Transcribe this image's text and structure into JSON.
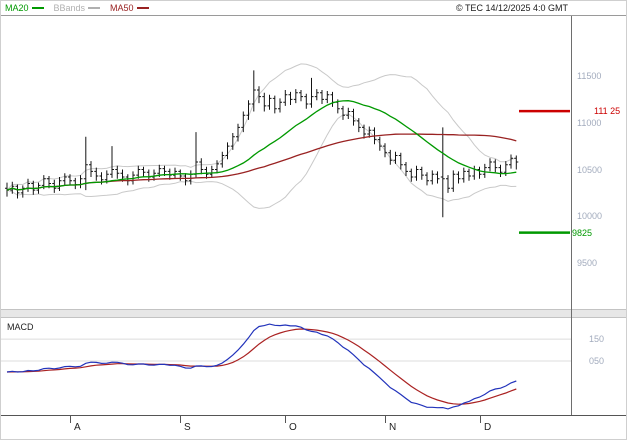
{
  "header": {
    "copyright": "© TEC 14/12/2025 4:0 GMT"
  },
  "legend": {
    "items": [
      {
        "id": "ma20",
        "label": "MA20",
        "color": "#009900"
      },
      {
        "id": "bbands",
        "label": "BBands",
        "color": "#b0b0b0"
      },
      {
        "id": "ma50",
        "label": "MA50",
        "color": "#992222"
      }
    ]
  },
  "colors": {
    "bars": "#141414",
    "ma20": "#009900",
    "ma50": "#992222",
    "bbands": "#c9c9c9",
    "axis_text": "#a2abbd",
    "grid": "#dcdcdc"
  },
  "chart_data": {
    "type": "ohlc",
    "description": "Daily price bars with MA20, MA50 and Bollinger Bands overlays plus MACD sub-panel",
    "x_axis": {
      "labels": [
        "A",
        "S",
        "O",
        "N",
        "D"
      ],
      "month_start_indices": [
        12,
        33,
        53,
        72,
        90
      ]
    },
    "y_axis": {
      "ticks": [
        {
          "label": "11500",
          "value": 11500
        },
        {
          "label": "11000",
          "value": 11000
        },
        {
          "label": "10500",
          "value": 10500
        },
        {
          "label": "10000",
          "value": 10000
        },
        {
          "label": "9500",
          "value": 9500
        }
      ],
      "visible_range": [
        8990,
        12140
      ]
    },
    "levels": [
      {
        "name": "resistance",
        "label": "111 25",
        "value": 11125,
        "color": "#cc0000"
      },
      {
        "name": "support",
        "label": "9825",
        "value": 9825,
        "color": "#009900"
      }
    ],
    "overlays": [
      {
        "name": "MA20",
        "type": "sma",
        "window": 20,
        "color": "#009900"
      },
      {
        "name": "MA50",
        "type": "sma",
        "window": 50,
        "color": "#992222"
      },
      {
        "name": "BBands",
        "type": "bollinger",
        "window": 20,
        "mult": 2,
        "color": "#c9c9c9"
      }
    ],
    "sub_panels": [
      {
        "name": "macd",
        "label": "MACD",
        "type": "macd",
        "params": [
          12,
          26,
          9
        ],
        "line_color": "#2233bb",
        "signal_color": "#aa2222",
        "ticks": [
          {
            "label": "150",
            "value": 150
          },
          {
            "label": "050",
            "value": 50
          }
        ]
      }
    ],
    "bars": [
      [
        10300,
        10360,
        10210,
        10280
      ],
      [
        10280,
        10370,
        10240,
        10320
      ],
      [
        10320,
        10340,
        10190,
        10250
      ],
      [
        10250,
        10330,
        10200,
        10300
      ],
      [
        10300,
        10400,
        10260,
        10350
      ],
      [
        10350,
        10380,
        10230,
        10280
      ],
      [
        10280,
        10360,
        10240,
        10330
      ],
      [
        10330,
        10440,
        10290,
        10400
      ],
      [
        10400,
        10430,
        10300,
        10350
      ],
      [
        10350,
        10390,
        10250,
        10300
      ],
      [
        10300,
        10420,
        10270,
        10380
      ],
      [
        10380,
        10460,
        10330,
        10420
      ],
      [
        10420,
        10450,
        10330,
        10380
      ],
      [
        10380,
        10410,
        10290,
        10340
      ],
      [
        10340,
        10440,
        10300,
        10400
      ],
      [
        10400,
        10850,
        10280,
        10550
      ],
      [
        10550,
        10590,
        10420,
        10480
      ],
      [
        10480,
        10520,
        10380,
        10430
      ],
      [
        10430,
        10470,
        10340,
        10390
      ],
      [
        10390,
        10490,
        10350,
        10450
      ],
      [
        10450,
        10750,
        10410,
        10500
      ],
      [
        10500,
        10540,
        10400,
        10460
      ],
      [
        10460,
        10500,
        10370,
        10420
      ],
      [
        10420,
        10450,
        10330,
        10380
      ],
      [
        10380,
        10480,
        10340,
        10440
      ],
      [
        10440,
        10540,
        10400,
        10500
      ],
      [
        10500,
        10530,
        10420,
        10470
      ],
      [
        10470,
        10500,
        10370,
        10420
      ],
      [
        10420,
        10500,
        10380,
        10460
      ],
      [
        10460,
        10550,
        10420,
        10510
      ],
      [
        10510,
        10540,
        10430,
        10480
      ],
      [
        10480,
        10510,
        10390,
        10440
      ],
      [
        10440,
        10520,
        10400,
        10480
      ],
      [
        10480,
        10500,
        10380,
        10430
      ],
      [
        10430,
        10460,
        10330,
        10380
      ],
      [
        10380,
        10490,
        10340,
        10450
      ],
      [
        10450,
        10900,
        10410,
        10580
      ],
      [
        10580,
        10620,
        10450,
        10500
      ],
      [
        10500,
        10530,
        10400,
        10450
      ],
      [
        10450,
        10540,
        10410,
        10500
      ],
      [
        10500,
        10600,
        10460,
        10560
      ],
      [
        10560,
        10690,
        10520,
        10650
      ],
      [
        10650,
        10790,
        10610,
        10750
      ],
      [
        10750,
        10890,
        10710,
        10850
      ],
      [
        10850,
        10990,
        10800,
        10950
      ],
      [
        10950,
        11120,
        10900,
        11080
      ],
      [
        11080,
        11240,
        11030,
        11200
      ],
      [
        11200,
        11560,
        11120,
        11350
      ],
      [
        11350,
        11390,
        11210,
        11280
      ],
      [
        11280,
        11320,
        11120,
        11180
      ],
      [
        11180,
        11300,
        11140,
        11260
      ],
      [
        11260,
        11290,
        11100,
        11150
      ],
      [
        11150,
        11260,
        11110,
        11220
      ],
      [
        11220,
        11350,
        11180,
        11300
      ],
      [
        11300,
        11330,
        11190,
        11250
      ],
      [
        11250,
        11360,
        11210,
        11320
      ],
      [
        11320,
        11350,
        11230,
        11280
      ],
      [
        11280,
        11310,
        11150,
        11200
      ],
      [
        11200,
        11480,
        11160,
        11280
      ],
      [
        11280,
        11360,
        11240,
        11320
      ],
      [
        11320,
        11350,
        11200,
        11250
      ],
      [
        11250,
        11340,
        11210,
        11300
      ],
      [
        11300,
        11330,
        11170,
        11220
      ],
      [
        11220,
        11250,
        11100,
        11150
      ],
      [
        11150,
        11180,
        11030,
        11080
      ],
      [
        11080,
        11160,
        11040,
        11120
      ],
      [
        11120,
        11150,
        10970,
        11020
      ],
      [
        11020,
        11050,
        10900,
        10950
      ],
      [
        10950,
        10980,
        10830,
        10880
      ],
      [
        10880,
        10960,
        10840,
        10920
      ],
      [
        10920,
        10950,
        10770,
        10820
      ],
      [
        10820,
        10850,
        10700,
        10750
      ],
      [
        10750,
        10780,
        10630,
        10680
      ],
      [
        10680,
        10710,
        10550,
        10600
      ],
      [
        10600,
        10690,
        10560,
        10650
      ],
      [
        10650,
        10680,
        10500,
        10550
      ],
      [
        10550,
        10580,
        10430,
        10480
      ],
      [
        10480,
        10510,
        10370,
        10420
      ],
      [
        10420,
        10540,
        10380,
        10500
      ],
      [
        10500,
        10530,
        10390,
        10440
      ],
      [
        10440,
        10470,
        10330,
        10380
      ],
      [
        10380,
        10490,
        10340,
        10450
      ],
      [
        10450,
        10480,
        10350,
        10400
      ],
      [
        10420,
        10950,
        9990,
        10400
      ],
      [
        10400,
        10440,
        10250,
        10300
      ],
      [
        10300,
        10490,
        10260,
        10450
      ],
      [
        10450,
        10480,
        10350,
        10400
      ],
      [
        10400,
        10520,
        10360,
        10480
      ],
      [
        10480,
        10510,
        10380,
        10430
      ],
      [
        10430,
        10540,
        10390,
        10500
      ],
      [
        10500,
        10530,
        10400,
        10450
      ],
      [
        10450,
        10560,
        10410,
        10520
      ],
      [
        10520,
        10620,
        10480,
        10580
      ],
      [
        10580,
        10610,
        10470,
        10520
      ],
      [
        10520,
        10550,
        10420,
        10470
      ],
      [
        10470,
        10590,
        10430,
        10550
      ],
      [
        10550,
        10660,
        10510,
        10620
      ],
      [
        10620,
        10650,
        10500,
        10580
      ]
    ]
  }
}
